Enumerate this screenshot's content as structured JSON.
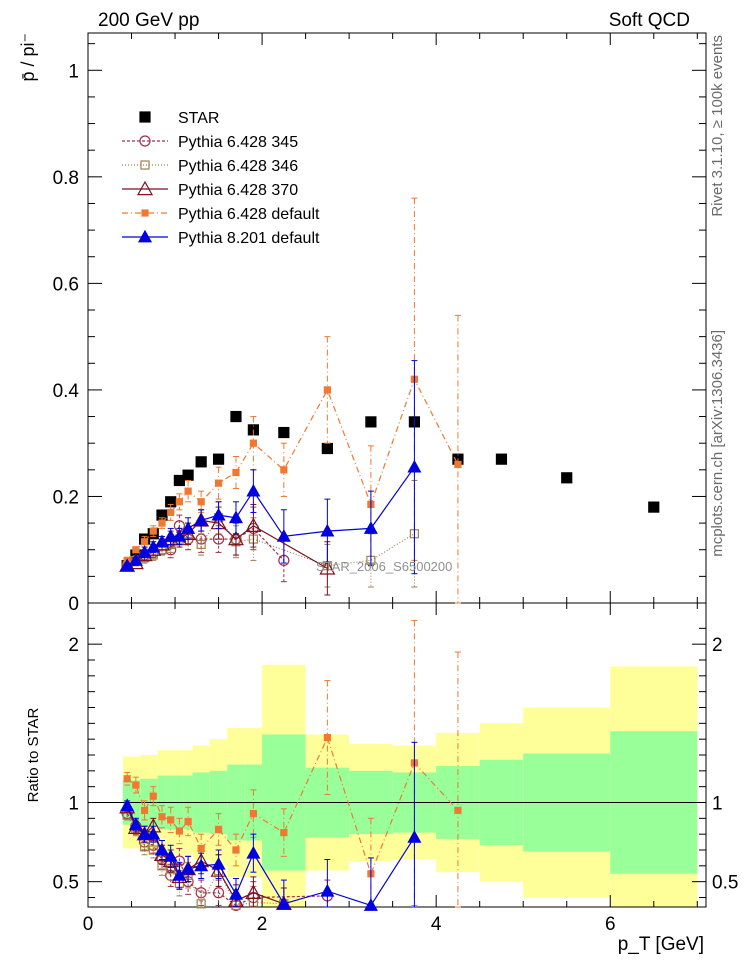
{
  "header": {
    "left": "200 GeV pp",
    "right": "Soft QCD",
    "side_top": "Rivet 3.1.10, ≥ 100k events",
    "side_bottom": "mcplots.cern.ch [arXiv:1306.3436]",
    "watermark": "STAR_2006_S6500200"
  },
  "colors": {
    "star": "#000000",
    "p345": "#a0304a",
    "p346": "#a08050",
    "p370": "#7a1020",
    "pdef": "#f07830",
    "p8": "#0000e0",
    "band_inner": "#99ff99",
    "band_outer": "#ffff99"
  },
  "chart_data": [
    {
      "type": "scatter",
      "panel": "main",
      "ylabel": "p̄ / pi⁻",
      "ylim": [
        0,
        1.07
      ],
      "yticks": [
        0,
        0.2,
        0.4,
        0.6,
        0.8,
        1
      ],
      "ytick_labels": [
        "0",
        "0.2",
        "0.4",
        "0.6",
        "0.8",
        "1"
      ],
      "xlim": [
        0,
        7.1
      ],
      "legend_position": "top-left",
      "series": [
        {
          "key": "star",
          "name": "STAR",
          "x": [
            0.45,
            0.55,
            0.65,
            0.75,
            0.85,
            0.95,
            1.05,
            1.15,
            1.3,
            1.5,
            1.7,
            1.9,
            2.25,
            2.75,
            3.25,
            3.75,
            4.25,
            4.75,
            5.5,
            6.5
          ],
          "y": [
            0.07,
            0.09,
            0.12,
            0.13,
            0.165,
            0.19,
            0.23,
            0.24,
            0.265,
            0.27,
            0.35,
            0.325,
            0.32,
            0.29,
            0.34,
            0.34,
            0.27,
            0.27,
            0.235,
            0.18
          ]
        },
        {
          "key": "p345",
          "name": "Pythia 6.428 345",
          "x": [
            0.45,
            0.55,
            0.65,
            0.75,
            0.85,
            0.95,
            1.05,
            1.15,
            1.3,
            1.5,
            1.7,
            1.9,
            2.25
          ],
          "y": [
            0.07,
            0.08,
            0.09,
            0.095,
            0.1,
            0.1,
            0.145,
            0.12,
            0.12,
            0.12,
            0.12,
            0.14,
            0.08
          ],
          "err": [
            0.005,
            0.005,
            0.01,
            0.01,
            0.01,
            0.015,
            0.02,
            0.02,
            0.025,
            0.025,
            0.03,
            0.04,
            0.04
          ]
        },
        {
          "key": "p346",
          "name": "Pythia 6.428 346",
          "x": [
            0.45,
            0.55,
            0.65,
            0.75,
            0.85,
            0.95,
            1.05,
            1.15,
            1.3,
            1.5,
            1.7,
            1.9,
            2.75,
            3.25,
            3.75
          ],
          "y": [
            0.07,
            0.08,
            0.085,
            0.09,
            0.1,
            0.11,
            0.12,
            0.13,
            0.11,
            0.16,
            0.115,
            0.12,
            0.07,
            0.08,
            0.13
          ],
          "err": [
            0.005,
            0.005,
            0.01,
            0.01,
            0.01,
            0.015,
            0.015,
            0.02,
            0.02,
            0.03,
            0.03,
            0.04,
            0.04,
            0.05,
            0.1
          ]
        },
        {
          "key": "p370",
          "name": "Pythia 6.428 370",
          "x": [
            0.45,
            0.55,
            0.65,
            0.75,
            0.85,
            0.95,
            1.05,
            1.15,
            1.3,
            1.5,
            1.7,
            1.9,
            2.75
          ],
          "y": [
            0.07,
            0.075,
            0.09,
            0.1,
            0.11,
            0.12,
            0.12,
            0.13,
            0.155,
            0.15,
            0.12,
            0.145,
            0.065
          ],
          "err": [
            0.005,
            0.005,
            0.01,
            0.01,
            0.01,
            0.015,
            0.015,
            0.02,
            0.02,
            0.03,
            0.03,
            0.04,
            0.05
          ]
        },
        {
          "key": "pdef",
          "name": "Pythia 6.428 default",
          "x": [
            0.45,
            0.55,
            0.65,
            0.75,
            0.85,
            0.95,
            1.05,
            1.15,
            1.3,
            1.5,
            1.7,
            1.9,
            2.25,
            2.75,
            3.25,
            3.75,
            4.25
          ],
          "y": [
            0.08,
            0.1,
            0.115,
            0.135,
            0.15,
            0.17,
            0.19,
            0.21,
            0.19,
            0.225,
            0.245,
            0.3,
            0.25,
            0.4,
            0.185,
            0.42,
            0.26
          ],
          "err": [
            0.005,
            0.005,
            0.01,
            0.01,
            0.01,
            0.015,
            0.015,
            0.02,
            0.02,
            0.03,
            0.03,
            0.05,
            0.05,
            0.1,
            0.11,
            0.34,
            0.28
          ]
        },
        {
          "key": "p8",
          "name": "Pythia 8.201 default",
          "x": [
            0.45,
            0.55,
            0.65,
            0.75,
            0.85,
            0.95,
            1.05,
            1.15,
            1.3,
            1.5,
            1.7,
            1.9,
            2.25,
            2.75,
            3.25,
            3.75
          ],
          "y": [
            0.07,
            0.08,
            0.095,
            0.105,
            0.115,
            0.125,
            0.125,
            0.14,
            0.155,
            0.165,
            0.16,
            0.21,
            0.125,
            0.135,
            0.14,
            0.255
          ],
          "err": [
            0.005,
            0.005,
            0.01,
            0.01,
            0.01,
            0.015,
            0.015,
            0.02,
            0.02,
            0.025,
            0.03,
            0.04,
            0.05,
            0.06,
            0.07,
            0.2
          ]
        }
      ]
    },
    {
      "type": "scatter",
      "panel": "ratio",
      "ylabel": "Ratio to STAR",
      "ylim": [
        0.34,
        2.26
      ],
      "yticks": [
        0.5,
        1,
        2
      ],
      "ytick_labels": [
        "0.5",
        "1",
        "2"
      ],
      "xlim": [
        0,
        7.1
      ],
      "xticks": [
        0,
        2,
        4,
        6
      ],
      "xtick_labels": [
        "0",
        "2",
        "4",
        "6"
      ],
      "xlabel": "p_T [GeV]",
      "band_edges": [
        0.4,
        0.5,
        0.6,
        0.7,
        0.8,
        0.9,
        1.0,
        1.1,
        1.2,
        1.4,
        1.6,
        1.8,
        2.0,
        2.5,
        3.0,
        3.5,
        4.0,
        4.5,
        5.0,
        6.0,
        7.0
      ],
      "band_inner": [
        0.14,
        0.14,
        0.15,
        0.15,
        0.17,
        0.17,
        0.17,
        0.17,
        0.19,
        0.2,
        0.24,
        0.24,
        0.43,
        0.22,
        0.2,
        0.19,
        0.23,
        0.27,
        0.31,
        0.45,
        0.46
      ],
      "band_outer": [
        0.29,
        0.29,
        0.3,
        0.3,
        0.33,
        0.33,
        0.33,
        0.33,
        0.36,
        0.4,
        0.47,
        0.47,
        0.87,
        0.43,
        0.37,
        0.36,
        0.44,
        0.5,
        0.6,
        0.86,
        0.86
      ],
      "series": [
        {
          "key": "p345",
          "x": [
            0.45,
            0.55,
            0.65,
            0.75,
            0.85,
            0.95,
            1.05,
            1.15,
            1.3,
            1.5,
            1.7,
            1.9,
            2.75
          ],
          "y": [
            0.93,
            0.85,
            0.75,
            0.73,
            0.64,
            0.54,
            0.63,
            0.5,
            0.43,
            0.43,
            0.35,
            0.4,
            0.41
          ],
          "err": [
            0.03,
            0.04,
            0.05,
            0.05,
            0.06,
            0.07,
            0.08,
            0.08,
            0.08,
            0.08,
            0.08,
            0.1,
            0.1
          ]
        },
        {
          "key": "p346",
          "x": [
            0.45,
            0.55,
            0.65,
            0.75,
            0.85,
            0.95,
            1.05,
            1.15,
            1.3,
            1.5,
            1.7,
            1.9,
            2.25
          ],
          "y": [
            0.92,
            0.83,
            0.72,
            0.7,
            0.6,
            0.58,
            0.49,
            0.54,
            0.36,
            0.57,
            0.35,
            0.37,
            0.36
          ],
          "err": [
            0.03,
            0.04,
            0.05,
            0.05,
            0.06,
            0.07,
            0.08,
            0.08,
            0.08,
            0.1,
            0.1,
            0.1,
            0.1
          ]
        },
        {
          "key": "p370",
          "x": [
            0.45,
            0.55,
            0.65,
            0.75,
            0.85,
            0.95,
            1.05,
            1.15,
            1.3,
            1.5,
            1.7,
            1.9,
            2.25
          ],
          "y": [
            0.97,
            0.84,
            0.8,
            0.85,
            0.67,
            0.63,
            0.53,
            0.58,
            0.63,
            0.57,
            0.38,
            0.43,
            0.36
          ],
          "err": [
            0.03,
            0.04,
            0.05,
            0.05,
            0.06,
            0.07,
            0.08,
            0.08,
            0.08,
            0.1,
            0.1,
            0.1,
            0.1
          ]
        },
        {
          "key": "pdef",
          "x": [
            0.45,
            0.55,
            0.65,
            0.75,
            0.85,
            0.95,
            1.05,
            1.15,
            1.3,
            1.5,
            1.7,
            1.9,
            2.25,
            2.75,
            3.25,
            3.75,
            4.25
          ],
          "y": [
            1.15,
            1.11,
            0.95,
            1.04,
            0.91,
            0.89,
            0.82,
            0.88,
            0.71,
            0.83,
            0.7,
            0.93,
            0.81,
            1.41,
            0.55,
            1.25,
            0.95
          ],
          "err": [
            0.04,
            0.05,
            0.06,
            0.06,
            0.07,
            0.08,
            0.08,
            0.09,
            0.09,
            0.1,
            0.1,
            0.15,
            0.15,
            0.36,
            0.35,
            0.9,
            1.0
          ]
        },
        {
          "key": "p8",
          "x": [
            0.45,
            0.55,
            0.65,
            0.75,
            0.85,
            0.95,
            1.05,
            1.15,
            1.3,
            1.5,
            1.7,
            1.9,
            2.25,
            2.75,
            3.25,
            3.75
          ],
          "y": [
            0.98,
            0.86,
            0.8,
            0.8,
            0.7,
            0.66,
            0.54,
            0.58,
            0.6,
            0.61,
            0.42,
            0.68,
            0.36,
            0.44,
            0.35,
            0.78
          ],
          "err": [
            0.03,
            0.04,
            0.05,
            0.05,
            0.06,
            0.07,
            0.08,
            0.08,
            0.08,
            0.09,
            0.1,
            0.12,
            0.15,
            0.2,
            0.3,
            0.6
          ]
        }
      ]
    }
  ]
}
